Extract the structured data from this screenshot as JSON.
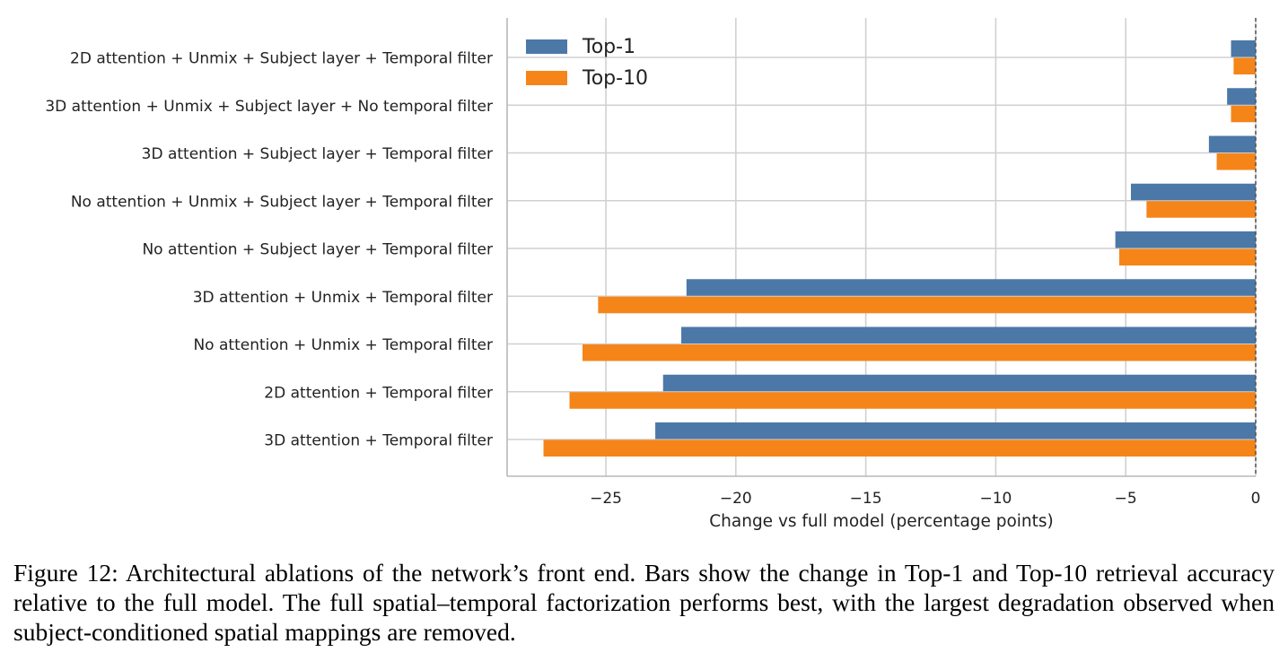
{
  "chart_data": {
    "type": "bar",
    "orientation": "horizontal",
    "categories": [
      "2D attention + Unmix + Subject layer + Temporal filter",
      "3D attention + Unmix + Subject layer + No temporal filter",
      "3D attention + Subject layer + Temporal filter",
      "No attention + Unmix + Subject layer + Temporal filter",
      "No attention + Subject layer + Temporal filter",
      "3D attention + Unmix + Temporal filter",
      "No attention + Unmix + Temporal filter",
      "2D attention + Temporal filter",
      "3D attention + Temporal filter"
    ],
    "series": [
      {
        "name": "Top-1",
        "color": "#4c78a8",
        "values": [
          -0.95,
          -1.1,
          -1.8,
          -4.8,
          -5.4,
          -21.9,
          -22.1,
          -22.8,
          -23.1
        ]
      },
      {
        "name": "Top-10",
        "color": "#f58518",
        "values": [
          -0.85,
          -0.95,
          -1.5,
          -4.2,
          -5.25,
          -25.3,
          -25.9,
          -26.4,
          -27.4
        ]
      }
    ],
    "xlabel": "Change vs full model (percentage points)",
    "ylabel": "",
    "xlim": [
      -28.8,
      0
    ],
    "xticks": [
      -25,
      -20,
      -15,
      -10,
      -5,
      0
    ],
    "xtick_labels": [
      "−25",
      "−20",
      "−15",
      "−10",
      "−5",
      "0"
    ],
    "grid": true,
    "legend": "top-left",
    "reference_line": {
      "x": 0,
      "style": "dashed"
    }
  },
  "caption": "Figure 12: Architectural ablations of the network’s front end. Bars show the change in Top-1 and Top-10 retrieval accuracy relative to the full model. The full spatial–temporal factorization performs best, with the largest degradation observed when subject-conditioned spatial mappings are removed."
}
